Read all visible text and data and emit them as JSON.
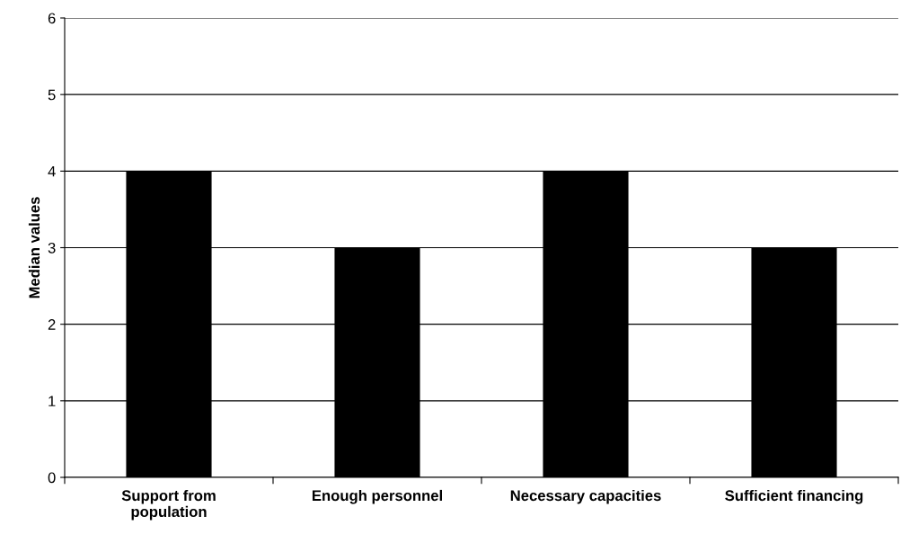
{
  "chart_data": {
    "type": "bar",
    "ylabel": "Median values",
    "categories": [
      "Support from\npopulation",
      "Enough personnel",
      "Necessary capacities",
      "Sufficient financing"
    ],
    "values": [
      4,
      3,
      4,
      3
    ],
    "color": "#000000",
    "ylim": [
      0,
      6
    ],
    "yticks": [
      0,
      1,
      2,
      3,
      4,
      5,
      6
    ],
    "grid": "y"
  }
}
